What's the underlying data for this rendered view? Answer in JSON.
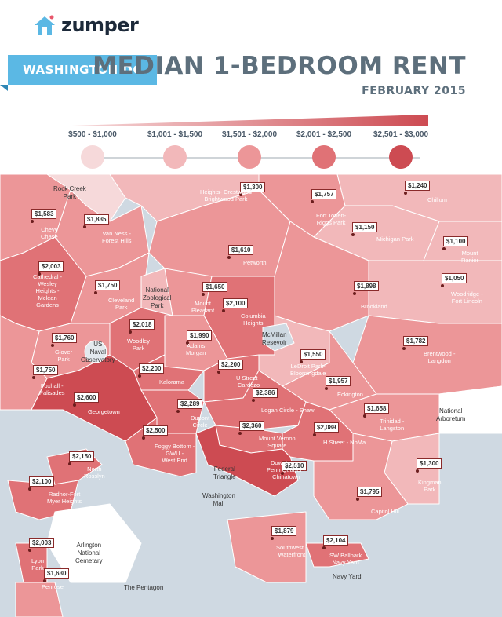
{
  "brand": {
    "name": "zumper",
    "icon": "house-logo-icon"
  },
  "city": "WASHINGTON DC",
  "title": "MEDIAN 1-BEDROOM RENT",
  "subtitle": "FEBRUARY 2015",
  "colors": {
    "tier1": "#f6d9da",
    "tier2": "#f2b8ba",
    "tier3": "#ec9698",
    "tier4": "#e07276",
    "tier5": "#cd4b52",
    "water": "#cfd9e2",
    "background": "#ffffff",
    "banner": "#5bb8e4"
  },
  "legend": [
    {
      "label": "$500 - $1,000",
      "color": "#f6d9da"
    },
    {
      "label": "$1,001 - $1,500",
      "color": "#f2b8ba"
    },
    {
      "label": "$1,501 - $2,000",
      "color": "#ec9698"
    },
    {
      "label": "$2,001 - $2,500",
      "color": "#e07276"
    },
    {
      "label": "$2,501 - $3,000",
      "color": "#cd4b52"
    }
  ],
  "neighborhoods": [
    {
      "name": "Chevy\nChase",
      "rent": "$1,583"
    },
    {
      "name": "Van Ness -\nForest Hills",
      "rent": "$1,835"
    },
    {
      "name": "Heights- Crestwood\nBrightwood Park",
      "rent": "$1,300"
    },
    {
      "name": "Fort Totten-\nRiggs Park",
      "rent": "$1,757"
    },
    {
      "name": "Chillum",
      "rent": "$1,240"
    },
    {
      "name": "Michigan Park",
      "rent": "$1,150"
    },
    {
      "name": "Mount\nRanier",
      "rent": "$1,100"
    },
    {
      "name": "Petworth",
      "rent": "$1,610"
    },
    {
      "name": "Cathedral -\nWesley\nHeights -\nMclean\nGardens",
      "rent": "$2,003"
    },
    {
      "name": "Cleveland\nPark",
      "rent": "$1,750"
    },
    {
      "name": "Mount\nPleasant",
      "rent": "$1,650"
    },
    {
      "name": "Columbia\nHeights",
      "rent": "$2,100"
    },
    {
      "name": "Brookland",
      "rent": "$1,898"
    },
    {
      "name": "Woodridge -\nFort Lincoln",
      "rent": "$1,050"
    },
    {
      "name": "Woodley\nPark",
      "rent": "$2,018"
    },
    {
      "name": "Glover\nPark",
      "rent": "$1,760"
    },
    {
      "name": "Adams\nMorgan",
      "rent": "$1,990"
    },
    {
      "name": "Brentwood -\nLangdon",
      "rent": "$1,782"
    },
    {
      "name": "LeDroit Park-\nBloomingdale",
      "rent": "$1,550"
    },
    {
      "name": "Foxhall -\nPalisades",
      "rent": "$1,750"
    },
    {
      "name": "Kalorama",
      "rent": "$2,200"
    },
    {
      "name": "U Street -\nCardozo",
      "rent": "$2,200"
    },
    {
      "name": "Eckington",
      "rent": "$1,957"
    },
    {
      "name": "Georgetown",
      "rent": "$2,600"
    },
    {
      "name": "Dupont\nCircle",
      "rent": "$2,289"
    },
    {
      "name": "Logan Circle - Shaw",
      "rent": "$2,386"
    },
    {
      "name": "Trinidad -\nLangston",
      "rent": "$1,658"
    },
    {
      "name": "Foggy Bottom -\nGWU -\nWest End",
      "rent": "$2,500"
    },
    {
      "name": "Mount Vernon\nSquare",
      "rent": "$2,360"
    },
    {
      "name": "H Street - NoMa",
      "rent": "$2,089"
    },
    {
      "name": "Downtown -\nPenn Quarter -\nChinatown",
      "rent": "$2,510"
    },
    {
      "name": "North\nRosslyn",
      "rent": "$2,150"
    },
    {
      "name": "Kingman\nPark",
      "rent": "$1,300"
    },
    {
      "name": "Radnor-Fort\nMyer Heights",
      "rent": "$2,100"
    },
    {
      "name": "Capitol Hill",
      "rent": "$1,795"
    },
    {
      "name": "Southwest -\nWaterfront",
      "rent": "$1,879"
    },
    {
      "name": "SW Ballpark\nNavy Yard",
      "rent": "$2,104"
    },
    {
      "name": "Lyon\nPark",
      "rent": "$2,003"
    },
    {
      "name": "Penrose",
      "rent": "$1,630"
    }
  ],
  "places": [
    {
      "name": "Rock Creek\nPark"
    },
    {
      "name": "National\nZoological\nPark"
    },
    {
      "name": "McMillan\nResevoir"
    },
    {
      "name": "US\nNaval\nObservatory"
    },
    {
      "name": "National\nArboretum"
    },
    {
      "name": "Federal\nTriangle"
    },
    {
      "name": "Washington\nMall"
    },
    {
      "name": "Arlington\nNational\nCemetary"
    },
    {
      "name": "The Pentagon"
    },
    {
      "name": "Navy Yard"
    }
  ]
}
